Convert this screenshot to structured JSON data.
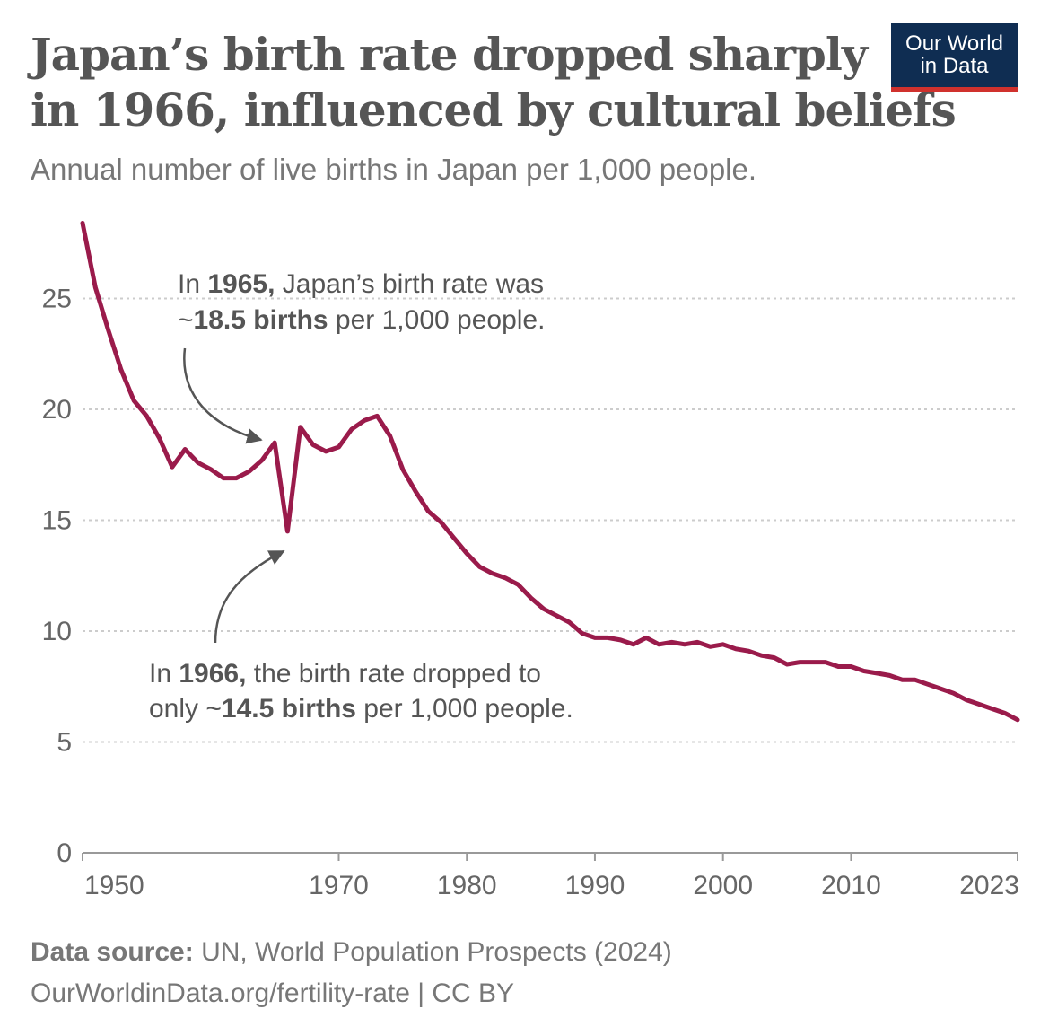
{
  "header": {
    "title_line1": "Japan’s birth rate dropped sharply",
    "title_line2": "in 1966, influenced by cultural beliefs",
    "subtitle": "Annual number of live births in Japan per 1,000 people."
  },
  "logo": {
    "line1": "Our World",
    "line2": "in Data",
    "bg_color": "#0f2d52",
    "accent_color": "#d0312d"
  },
  "annotations": {
    "a1965": {
      "line1_pre": "In ",
      "line1_bold": "1965,",
      "line1_post": " Japan’s birth rate was",
      "line2_pre": "~",
      "line2_bold": "18.5 births",
      "line2_post": " per 1,000 people."
    },
    "a1966": {
      "line1_pre": "In ",
      "line1_bold": "1966,",
      "line1_post": " the birth rate dropped to",
      "line2_pre": "only ~",
      "line2_bold": "14.5 births",
      "line2_post": " per 1,000 people."
    }
  },
  "footer": {
    "source_label": "Data source:",
    "source_text": " UN, World Population Prospects (2024)",
    "url_line": "OurWorldinData.org/fertility-rate | CC BY"
  },
  "chart_data": {
    "type": "line",
    "title": "Japan’s birth rate dropped sharply in 1966, influenced by cultural beliefs",
    "subtitle": "Annual number of live births in Japan per 1,000 people.",
    "xlabel": "",
    "ylabel": "",
    "xlim": [
      1950,
      2023
    ],
    "ylim": [
      0,
      27
    ],
    "y_ticks": [
      0,
      5,
      10,
      15,
      20,
      25
    ],
    "x_ticks": [
      1950,
      1970,
      1980,
      1990,
      2000,
      2010,
      2023
    ],
    "grid": "horizontal-dotted",
    "line_color": "#9a1b4b",
    "series": [
      {
        "x": [
          1950,
          1951,
          1952,
          1953,
          1954,
          1955,
          1956,
          1957,
          1958,
          1959,
          1960,
          1961,
          1962,
          1963,
          1964,
          1965,
          1966,
          1967,
          1968,
          1969,
          1970,
          1971,
          1972,
          1973,
          1974,
          1975,
          1976,
          1977,
          1978,
          1979,
          1980,
          1981,
          1982,
          1983,
          1984,
          1985,
          1986,
          1987,
          1988,
          1989,
          1990,
          1991,
          1992,
          1993,
          1994,
          1995,
          1996,
          1997,
          1998,
          1999,
          2000,
          2001,
          2002,
          2003,
          2004,
          2005,
          2006,
          2007,
          2008,
          2009,
          2010,
          2011,
          2012,
          2013,
          2014,
          2015,
          2016,
          2017,
          2018,
          2019,
          2020,
          2021,
          2022,
          2023
        ],
        "values": [
          28.4,
          25.5,
          23.6,
          21.8,
          20.4,
          19.7,
          18.7,
          17.4,
          18.2,
          17.6,
          17.3,
          16.9,
          16.9,
          17.2,
          17.7,
          18.5,
          14.5,
          19.2,
          18.4,
          18.1,
          18.3,
          19.1,
          19.5,
          19.7,
          18.8,
          17.3,
          16.3,
          15.4,
          14.9,
          14.2,
          13.5,
          12.9,
          12.6,
          12.4,
          12.1,
          11.5,
          11.0,
          10.7,
          10.4,
          9.9,
          9.7,
          9.7,
          9.6,
          9.4,
          9.7,
          9.4,
          9.5,
          9.4,
          9.5,
          9.3,
          9.4,
          9.2,
          9.1,
          8.9,
          8.8,
          8.5,
          8.6,
          8.6,
          8.6,
          8.4,
          8.4,
          8.2,
          8.1,
          8.0,
          7.8,
          7.8,
          7.6,
          7.4,
          7.2,
          6.9,
          6.7,
          6.5,
          6.3,
          6.0
        ]
      }
    ]
  }
}
